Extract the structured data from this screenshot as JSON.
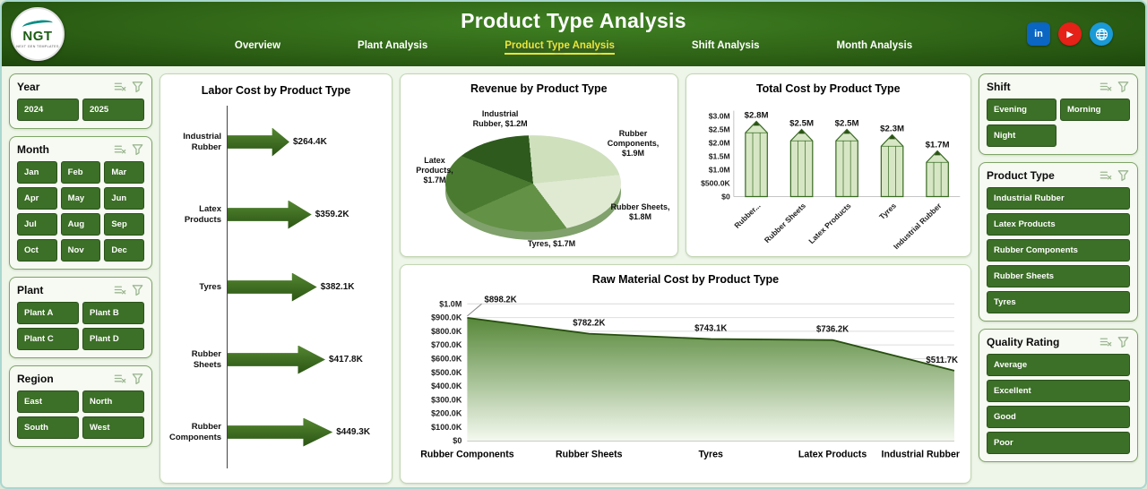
{
  "header": {
    "title": "Product Type Analysis",
    "logo": {
      "text": "NGT",
      "subtext": "NEXT GEN TEMPLATES"
    },
    "nav": [
      {
        "label": "Overview",
        "active": false
      },
      {
        "label": "Plant Analysis",
        "active": false
      },
      {
        "label": "Product Type Analysis",
        "active": true
      },
      {
        "label": "Shift Analysis",
        "active": false
      },
      {
        "label": "Month Analysis",
        "active": false
      }
    ],
    "social": [
      {
        "name": "linkedin",
        "glyph": "in",
        "color": "#0a66c2"
      },
      {
        "name": "youtube",
        "glyph": "▶",
        "color": "#e62117"
      },
      {
        "name": "website",
        "glyph": "",
        "color": "#1a9ad7"
      }
    ]
  },
  "filters_left": [
    {
      "title": "Year",
      "cols": 2,
      "buttons": [
        "2024",
        "2025"
      ]
    },
    {
      "title": "Month",
      "cols": 3,
      "buttons": [
        "Jan",
        "Feb",
        "Mar",
        "Apr",
        "May",
        "Jun",
        "Jul",
        "Aug",
        "Sep",
        "Oct",
        "Nov",
        "Dec"
      ]
    },
    {
      "title": "Plant",
      "cols": 2,
      "buttons": [
        "Plant A",
        "Plant B",
        "Plant C",
        "Plant D"
      ]
    },
    {
      "title": "Region",
      "cols": 2,
      "buttons": [
        "East",
        "North",
        "South",
        "West"
      ]
    }
  ],
  "filters_right": [
    {
      "title": "Shift",
      "cols": 2,
      "buttons": [
        "Evening",
        "Morning",
        "Night"
      ]
    },
    {
      "title": "Product Type",
      "cols": 1,
      "buttons": [
        "Industrial Rubber",
        "Latex Products",
        "Rubber Components",
        "Rubber Sheets",
        "Tyres"
      ]
    },
    {
      "title": "Quality Rating",
      "cols": 1,
      "buttons": [
        "Average",
        "Excellent",
        "Good",
        "Poor"
      ]
    }
  ],
  "chart_data": {
    "labor": {
      "type": "bar",
      "title": "Labor Cost by Product Type",
      "categories": [
        "Industrial Rubber",
        "Latex Products",
        "Tyres",
        "Rubber Sheets",
        "Rubber Components"
      ],
      "values": [
        264.4,
        359.2,
        382.1,
        417.8,
        449.3
      ],
      "labels": [
        "$264.4K",
        "$359.2K",
        "$382.1K",
        "$417.8K",
        "$449.3K"
      ],
      "unit": "K USD"
    },
    "revenue": {
      "type": "pie",
      "title": "Revenue by Product Type",
      "slices": [
        {
          "name": "Industrial Rubber",
          "label": "Industrial Rubber, $1.2M",
          "value": 1.2,
          "color": "#2e5a1d"
        },
        {
          "name": "Rubber Components",
          "label": "Rubber Components, $1.9M",
          "value": 1.9,
          "color": "#cfe0bd"
        },
        {
          "name": "Rubber Sheets",
          "label": "Rubber Sheets, $1.8M",
          "value": 1.8,
          "color": "#e0ead3"
        },
        {
          "name": "Tyres",
          "label": "Tyres, $1.7M",
          "value": 1.7,
          "color": "#639146"
        },
        {
          "name": "Latex Products",
          "label": "Latex Products, $1.7M",
          "value": 1.7,
          "color": "#497a30"
        }
      ],
      "unit": "M USD"
    },
    "total_cost": {
      "type": "bar",
      "title": "Total Cost by Product Type",
      "categories": [
        "Rubber...",
        "Rubber Sheets",
        "Latex Products",
        "Tyres",
        "Industrial Rubber"
      ],
      "values": [
        2.8,
        2.5,
        2.5,
        2.3,
        1.7
      ],
      "labels": [
        "$2.8M",
        "$2.5M",
        "$2.5M",
        "$2.3M",
        "$1.7M"
      ],
      "y_ticks": [
        "$3.0M",
        "$2.5M",
        "$2.0M",
        "$1.5M",
        "$1.0M",
        "$500.0K",
        "$0"
      ],
      "ymax": 3.0,
      "unit": "M USD"
    },
    "raw_material": {
      "type": "area",
      "title": "Raw Material Cost by Product Type",
      "categories": [
        "Rubber Components",
        "Rubber Sheets",
        "Tyres",
        "Latex Products",
        "Industrial Rubber"
      ],
      "values": [
        898.2,
        782.2,
        743.1,
        736.2,
        511.7
      ],
      "labels": [
        "$898.2K",
        "$782.2K",
        "$743.1K",
        "$736.2K",
        "$511.7K"
      ],
      "y_ticks": [
        "$1.0M",
        "$900.0K",
        "$800.0K",
        "$700.0K",
        "$600.0K",
        "$500.0K",
        "$400.0K",
        "$300.0K",
        "$200.0K",
        "$100.0K",
        "$0"
      ],
      "ymax": 1000,
      "unit": "K USD"
    }
  }
}
